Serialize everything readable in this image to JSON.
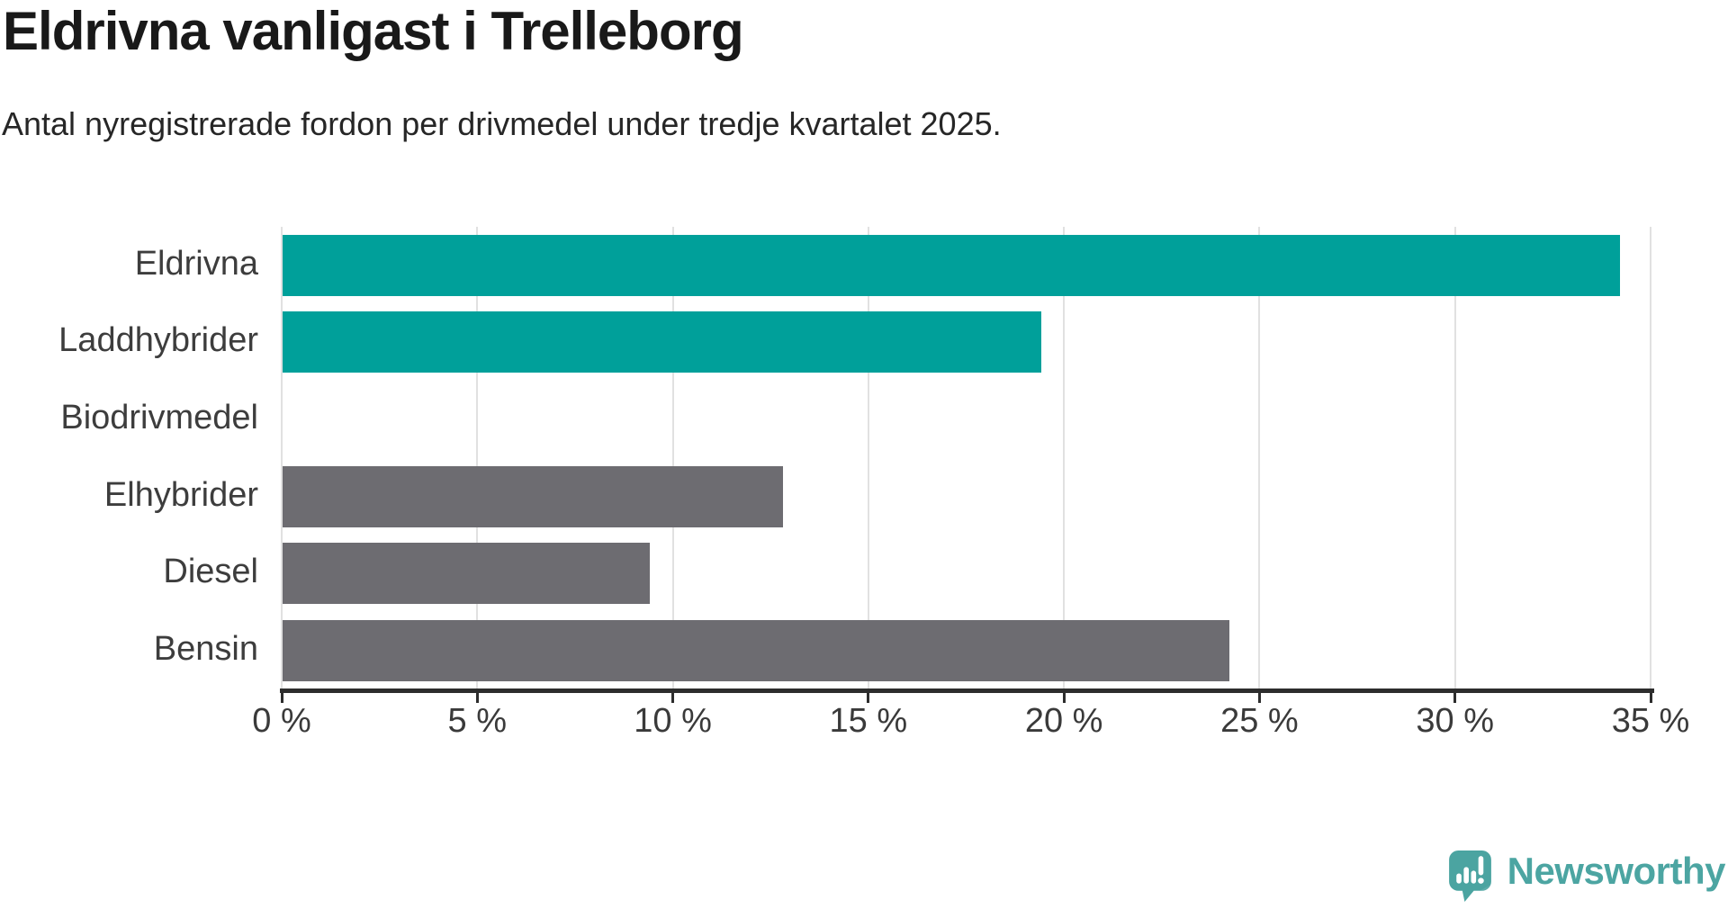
{
  "title": "Eldrivna vanligast i Trelleborg",
  "subtitle": "Antal nyregistrerade fordon per drivmedel under tredje kvartalet 2025.",
  "chart_data": {
    "type": "bar",
    "orientation": "horizontal",
    "title": "Eldrivna vanligast i Trelleborg",
    "subtitle": "Antal nyregistrerade fordon per drivmedel under tredje kvartalet 2025.",
    "categories": [
      "Eldrivna",
      "Laddhybrider",
      "Biodrivmedel",
      "Elhybrider",
      "Diesel",
      "Bensin"
    ],
    "values": [
      34.2,
      19.4,
      0,
      12.8,
      9.4,
      24.2
    ],
    "unit": "%",
    "xlabel": "",
    "ylabel": "",
    "xlim": [
      0,
      35
    ],
    "x_ticks": [
      0,
      5,
      10,
      15,
      20,
      25,
      30,
      35
    ],
    "x_tick_labels": [
      "0 %",
      "5 %",
      "10 %",
      "15 %",
      "20 %",
      "25 %",
      "30 %",
      "35 %"
    ],
    "grid": "vertical",
    "legend": "none",
    "bar_colors": [
      "#00A09A",
      "#00A09A",
      "#00A09A",
      "#6D6C71",
      "#6D6C71",
      "#6D6C71"
    ],
    "highlight_color": "#00A09A",
    "base_color": "#6D6C71"
  },
  "branding": {
    "logo_text": "Newsworthy",
    "logo_icon": "speech-bubble-bar-chart-exclamation",
    "logo_color": "#4CA5A2"
  },
  "colors": {
    "background": "#FFFFFF",
    "bar_highlight": "#00A09A",
    "bar_default": "#6D6C71",
    "gridline": "#E1E1E1",
    "axis": "#2D2D2D",
    "title_text": "#191919",
    "label_text": "#3D3D3D"
  }
}
